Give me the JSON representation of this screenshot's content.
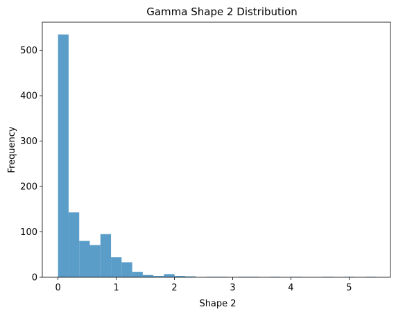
{
  "chart_data": {
    "type": "bar",
    "title": "Gamma Shape 2 Distribution",
    "xlabel": "Shape 2",
    "ylabel": "Frequency",
    "xlim": [
      -0.27,
      5.71
    ],
    "ylim": [
      0,
      562
    ],
    "xticks": [
      0,
      1,
      2,
      3,
      4,
      5
    ],
    "yticks": [
      0,
      100,
      200,
      300,
      400,
      500
    ],
    "bin_edges": [
      0,
      0.182,
      0.364,
      0.546,
      0.728,
      0.91,
      1.092,
      1.274,
      1.456,
      1.638,
      1.82,
      2.002,
      2.184,
      2.366,
      2.548,
      2.73,
      2.912,
      3.094,
      3.276,
      3.458,
      3.64,
      3.822,
      4.004,
      4.186,
      4.368,
      4.55,
      4.732,
      4.914,
      5.096,
      5.278,
      5.46
    ],
    "values": [
      535,
      143,
      80,
      71,
      95,
      44,
      33,
      12,
      5,
      3,
      7,
      3,
      2,
      0,
      1,
      1,
      0,
      1,
      1,
      0,
      1,
      0,
      1,
      0,
      0,
      1,
      0,
      1,
      0,
      1
    ],
    "grid": false,
    "color": "#5b9dc9",
    "axis_color": "#000000"
  }
}
